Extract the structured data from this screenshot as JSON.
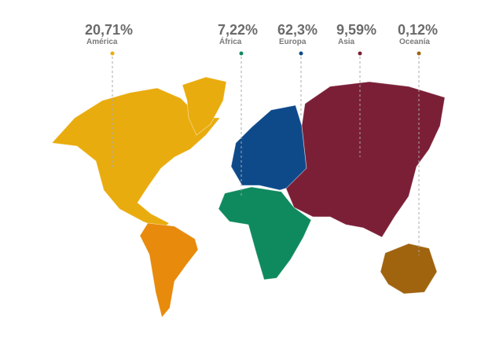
{
  "regions": [
    {
      "share": "20,71%",
      "name": "América"
    },
    {
      "share": "7,22%",
      "name": "África"
    },
    {
      "share": "62,3%",
      "name": "Europa"
    },
    {
      "share": "9,59%",
      "name": "Asia"
    },
    {
      "share": "0,12%",
      "name": "Oceanía"
    }
  ]
}
